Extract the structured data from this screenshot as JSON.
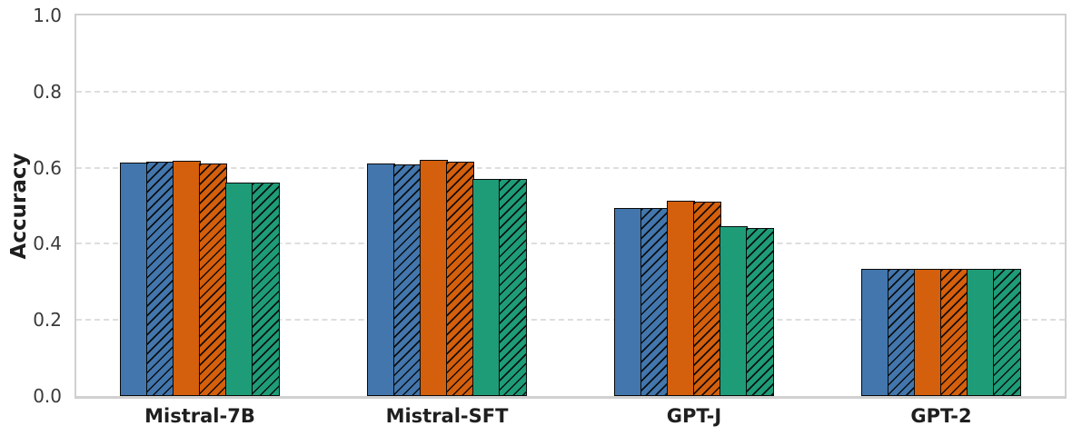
{
  "chart_data": {
    "type": "bar",
    "title": "",
    "xlabel": "",
    "ylabel": "Accuracy",
    "ylim": [
      0,
      1
    ],
    "yticks": [
      0.0,
      0.2,
      0.4,
      0.6,
      0.8,
      1.0
    ],
    "ytick_labels": [
      "0.0",
      "0.2",
      "0.4",
      "0.6",
      "0.8",
      "1.0"
    ],
    "grid": "horizontal-dashed",
    "legend": "none",
    "categories": [
      "Mistral-7B",
      "Mistral-SFT",
      "GPT-J",
      "GPT-2"
    ],
    "series": [
      {
        "name": "blue-solid",
        "color": "#4276AC",
        "hatch": "none",
        "values": [
          0.614,
          0.611,
          0.493,
          0.333
        ]
      },
      {
        "name": "blue-hatched",
        "color": "#4276AC",
        "hatch": "///",
        "values": [
          0.615,
          0.609,
          0.495,
          0.333
        ]
      },
      {
        "name": "orange-solid",
        "color": "#D45F0C",
        "hatch": "none",
        "values": [
          0.619,
          0.62,
          0.513,
          0.333
        ]
      },
      {
        "name": "orange-hatched",
        "color": "#D45F0C",
        "hatch": "///",
        "values": [
          0.611,
          0.616,
          0.511,
          0.333
        ]
      },
      {
        "name": "green-solid",
        "color": "#1E9C78",
        "hatch": "none",
        "values": [
          0.561,
          0.571,
          0.446,
          0.333
        ]
      },
      {
        "name": "green-hatched",
        "color": "#1E9C78",
        "hatch": "///",
        "values": [
          0.56,
          0.571,
          0.441,
          0.333
        ]
      }
    ],
    "bar_edge_color": "#0a0a0a",
    "axis_colors": {
      "spine": "#d0d0d0",
      "grid": "#dedede",
      "tick_label": "#3a3a3a",
      "axis_label": "#1f1f1f"
    }
  }
}
